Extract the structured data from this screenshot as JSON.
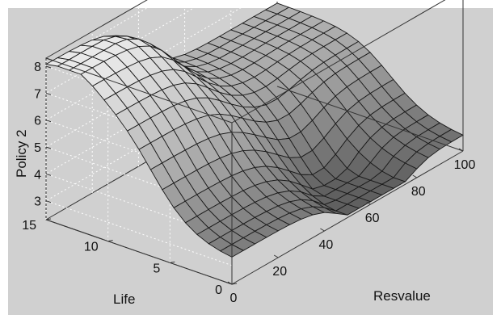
{
  "chart_data": {
    "type": "surface",
    "title": "",
    "xlabel": "Resvalue",
    "ylabel": "Life",
    "zlabel": "Policy 2",
    "xlim": [
      0,
      100
    ],
    "ylim": [
      0,
      15
    ],
    "zlim": [
      2.3,
      8.3
    ],
    "x_ticks": [
      "0",
      "20",
      "40",
      "60",
      "80",
      "100"
    ],
    "y_ticks": [
      "0",
      "5",
      "10",
      "15"
    ],
    "z_ticks": [
      "3",
      "4",
      "5",
      "6",
      "7",
      "8"
    ],
    "grid": true,
    "colors": {
      "panel": "#d0d0d0",
      "page": "#ffffff",
      "surface_low": "#5a5a5a",
      "surface_high": "#ececec",
      "mesh": "#1a1a1a"
    }
  }
}
